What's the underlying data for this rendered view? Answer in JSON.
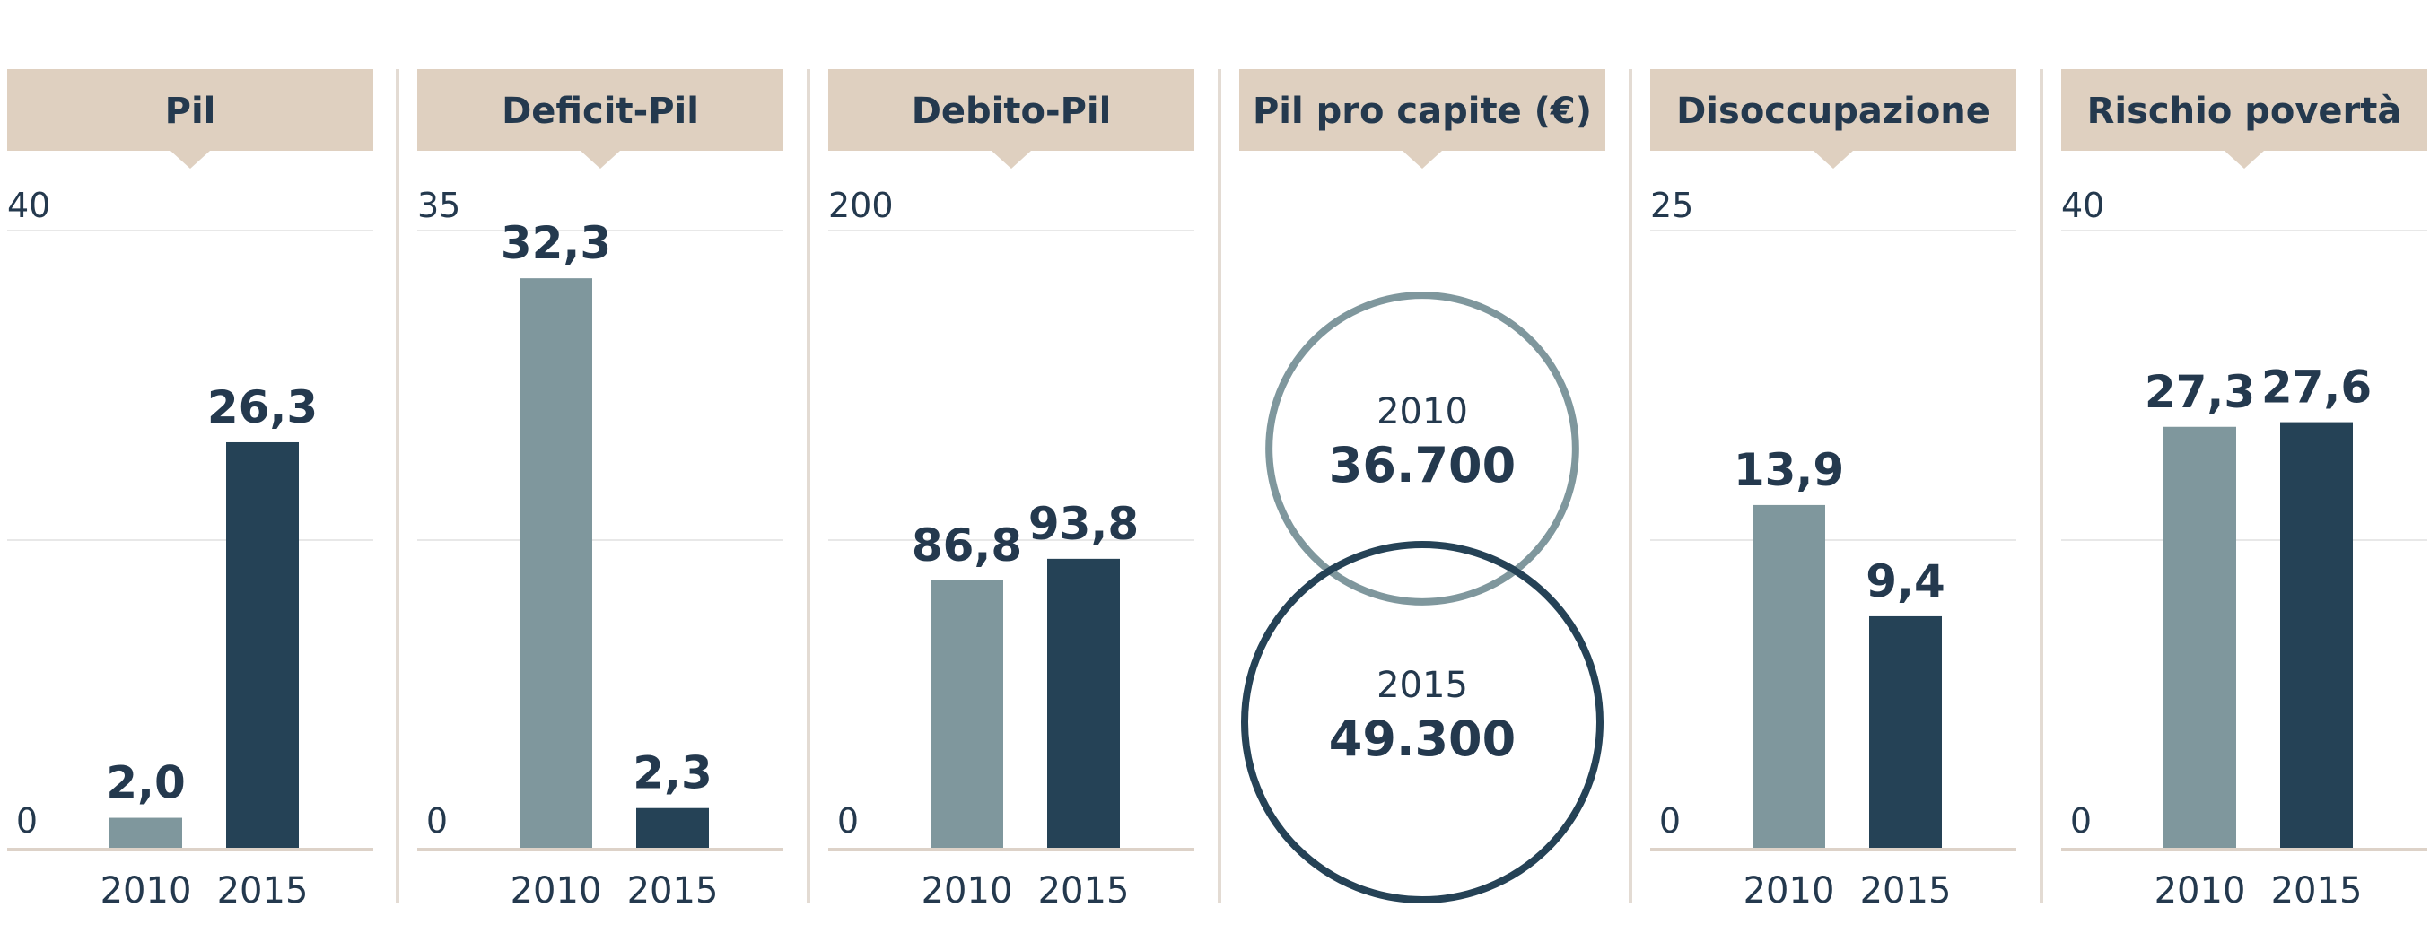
{
  "colors": {
    "header_bg": "#dfd0c0",
    "bar_2010": "#7f979d",
    "bar_2015": "#254256",
    "text": "#24394e",
    "gridline": "#e8e8e8",
    "baseline": "#ddd2c8",
    "separator": "#e3dbd3"
  },
  "chart_data": [
    {
      "type": "bar",
      "title": "Pil",
      "categories": [
        "2010",
        "2015"
      ],
      "values": [
        2.0,
        26.3
      ],
      "value_labels": [
        "2,0",
        "26,3"
      ],
      "ylim": [
        0,
        40
      ],
      "y_tick_labels": [
        "0",
        "40"
      ],
      "grid": true
    },
    {
      "type": "bar",
      "title": "Deficit-Pil",
      "categories": [
        "2010",
        "2015"
      ],
      "values": [
        32.3,
        2.3
      ],
      "value_labels": [
        "32,3",
        "2,3"
      ],
      "ylim": [
        0,
        35
      ],
      "y_tick_labels": [
        "0",
        "35"
      ],
      "grid": true
    },
    {
      "type": "bar",
      "title": "Debito-Pil",
      "categories": [
        "2010",
        "2015"
      ],
      "values": [
        86.8,
        93.8
      ],
      "value_labels": [
        "86,8",
        "93,8"
      ],
      "ylim": [
        0,
        200
      ],
      "y_tick_labels": [
        "0",
        "200"
      ],
      "grid": true
    },
    {
      "type": "bubble",
      "title": "Pil pro capite (€)",
      "categories": [
        "2010",
        "2015"
      ],
      "values": [
        36700,
        49300
      ],
      "value_labels": [
        "36.700",
        "49.300"
      ]
    },
    {
      "type": "bar",
      "title": "Disoccupazione",
      "categories": [
        "2010",
        "2015"
      ],
      "values": [
        13.9,
        9.4
      ],
      "value_labels": [
        "13,9",
        "9,4"
      ],
      "ylim": [
        0,
        25
      ],
      "y_tick_labels": [
        "0",
        "25"
      ],
      "grid": true
    },
    {
      "type": "bar",
      "title": "Rischio povertà",
      "categories": [
        "2010",
        "2015"
      ],
      "values": [
        27.3,
        27.6
      ],
      "value_labels": [
        "27,3",
        "27,6"
      ],
      "ylim": [
        0,
        40
      ],
      "y_tick_labels": [
        "0",
        "40"
      ],
      "grid": true
    }
  ]
}
